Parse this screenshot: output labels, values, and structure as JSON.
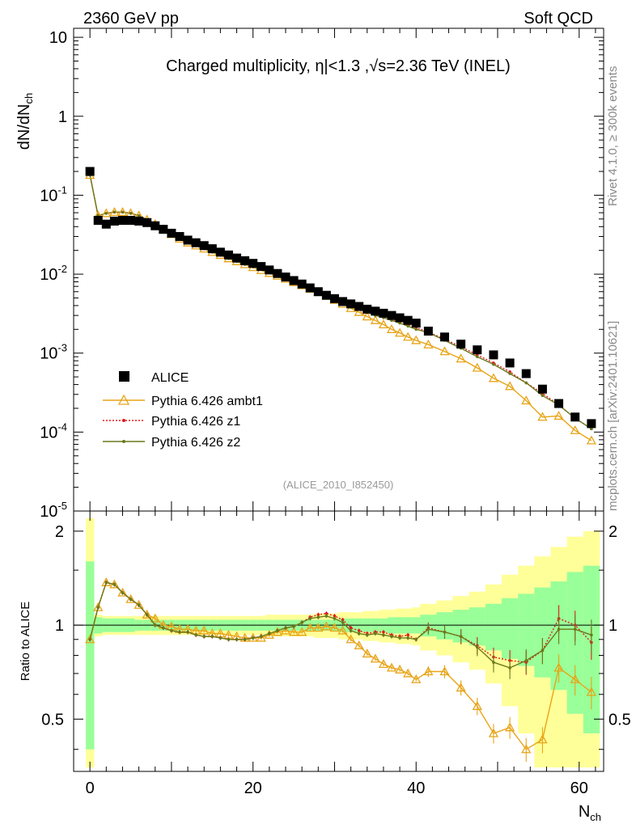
{
  "header": {
    "left": "2360 GeV pp",
    "right": "Soft QCD"
  },
  "side_text": {
    "rivet": "Rivet 4.1.0, ≥ 300k events",
    "mcplots": "mcplots.cern.ch [arXiv:2401.10621]"
  },
  "colors": {
    "data": "#000000",
    "ambt1": "#e8a417",
    "z1": "#e31a1c",
    "z2": "#6b7a1a",
    "band_inner": "#99ff99",
    "band_outer": "#ffff99"
  },
  "chart_data": [
    {
      "type": "scatter",
      "title": "Charged multiplicity, η|<1.3 ,√s=2.36 TeV (INEL)",
      "analysis_label": "(ALICE_2010_I852450)",
      "xlabel": "N_ch",
      "ylabel": "dN/dN_ch",
      "xlim": [
        -2,
        63
      ],
      "ylim": [
        1e-05,
        13
      ],
      "yscale": "log",
      "y_tick_labels": [
        "10^-5",
        "10^-4",
        "10^-3",
        "10^-2",
        "10^-1",
        "1",
        "10"
      ],
      "legend": [
        "ALICE",
        "Pythia 6.426 ambt1",
        "Pythia 6.426 z1",
        "Pythia 6.426 z2"
      ],
      "legend_position": "bottom-left",
      "x": [
        0,
        1,
        2,
        3,
        4,
        5,
        6,
        7,
        8,
        9,
        10,
        11,
        12,
        13,
        14,
        15,
        16,
        17,
        18,
        19,
        20,
        21,
        22,
        23,
        24,
        25,
        26,
        27,
        28,
        29,
        30,
        31,
        32,
        33,
        34,
        35,
        36,
        37,
        38,
        39,
        40,
        41.5,
        43.5,
        45.5,
        47.5,
        49.5,
        51.5,
        53.5,
        55.5,
        57.5,
        59.5,
        61.5
      ],
      "series": [
        {
          "name": "ALICE",
          "values": [
            0.2,
            0.048,
            0.043,
            0.047,
            0.048,
            0.048,
            0.047,
            0.045,
            0.041,
            0.037,
            0.033,
            0.03,
            0.027,
            0.025,
            0.023,
            0.021,
            0.019,
            0.0175,
            0.016,
            0.0148,
            0.0137,
            0.0125,
            0.0113,
            0.0102,
            0.0092,
            0.0083,
            0.0075,
            0.0067,
            0.006,
            0.0054,
            0.0049,
            0.0045,
            0.0042,
            0.0039,
            0.0036,
            0.0034,
            0.0032,
            0.003,
            0.0028,
            0.0026,
            0.0024,
            0.0019,
            0.0016,
            0.0013,
            0.0011,
            0.00095,
            0.00075,
            0.00055,
            0.00035,
            0.00023,
            0.000155,
            0.000128
          ]
        },
        {
          "name": "Pythia 6.426 ambt1",
          "values": [
            0.18,
            0.055,
            0.059,
            0.061,
            0.061,
            0.059,
            0.055,
            0.049,
            0.043,
            0.037,
            0.032,
            0.028,
            0.025,
            0.023,
            0.021,
            0.019,
            0.0174,
            0.0158,
            0.0145,
            0.0133,
            0.0122,
            0.0112,
            0.0103,
            0.0095,
            0.0087,
            0.0079,
            0.0072,
            0.0065,
            0.0059,
            0.0053,
            0.0047,
            0.0042,
            0.0037,
            0.0033,
            0.0029,
            0.0026,
            0.0023,
            0.002,
            0.0018,
            0.0016,
            0.00145,
            0.00128,
            0.00105,
            0.00085,
            0.00065,
            0.00048,
            0.00038,
            0.00025,
            0.000155,
            0.00016,
            0.000105,
            7.8e-05
          ]
        },
        {
          "name": "Pythia 6.426 z1",
          "values": [
            0.18,
            0.055,
            0.059,
            0.061,
            0.061,
            0.059,
            0.055,
            0.049,
            0.043,
            0.037,
            0.032,
            0.028,
            0.025,
            0.023,
            0.021,
            0.019,
            0.0174,
            0.0158,
            0.0145,
            0.0133,
            0.0124,
            0.0115,
            0.0106,
            0.0098,
            0.009,
            0.0082,
            0.0076,
            0.0071,
            0.0064,
            0.0057,
            0.0051,
            0.0045,
            0.0041,
            0.0037,
            0.0034,
            0.0031,
            0.0029,
            0.0027,
            0.0025,
            0.0023,
            0.0021,
            0.00185,
            0.0015,
            0.0012,
            0.00095,
            0.00075,
            0.00058,
            0.00042,
            0.00031,
            0.00022,
            0.00015,
            0.00011
          ]
        },
        {
          "name": "Pythia 6.426 z2",
          "values": [
            0.18,
            0.055,
            0.059,
            0.061,
            0.061,
            0.059,
            0.055,
            0.049,
            0.043,
            0.037,
            0.032,
            0.028,
            0.025,
            0.023,
            0.021,
            0.019,
            0.0174,
            0.0158,
            0.0145,
            0.0133,
            0.0124,
            0.0115,
            0.0106,
            0.0098,
            0.009,
            0.0082,
            0.0075,
            0.007,
            0.0063,
            0.0056,
            0.005,
            0.0044,
            0.004,
            0.0036,
            0.0033,
            0.003,
            0.0028,
            0.0026,
            0.0024,
            0.0022,
            0.002,
            0.00183,
            0.00145,
            0.00115,
            0.0009,
            0.00072,
            0.00055,
            0.00042,
            0.00029,
            0.00022,
            0.00015,
            0.00011
          ]
        }
      ]
    },
    {
      "type": "scatter",
      "title": "",
      "xlabel": "N_ch",
      "ylabel": "Ratio to ALICE",
      "xlim": [
        -2,
        63
      ],
      "ylim": [
        0.34,
        2.32
      ],
      "x_tick_labels": [
        "0",
        "20",
        "40",
        "60"
      ],
      "y_tick_labels": [
        "0.5",
        "1",
        "2"
      ],
      "x": [
        0,
        1,
        2,
        3,
        4,
        5,
        6,
        7,
        8,
        9,
        10,
        11,
        12,
        13,
        14,
        15,
        16,
        17,
        18,
        19,
        20,
        21,
        22,
        23,
        24,
        25,
        26,
        27,
        28,
        29,
        30,
        31,
        32,
        33,
        34,
        35,
        36,
        37,
        38,
        39,
        40,
        41.5,
        43.5,
        45.5,
        47.5,
        49.5,
        51.5,
        53.5,
        55.5,
        57.5,
        59.5,
        61.5
      ],
      "bands": {
        "edges": [
          -0.5,
          0.5,
          1.5,
          2.5,
          3.5,
          4.5,
          5.5,
          6.5,
          7.5,
          8.5,
          9.5,
          10.5,
          11.5,
          12.5,
          13.5,
          14.5,
          15.5,
          16.5,
          17.5,
          18.5,
          19.5,
          20.5,
          21.5,
          22.5,
          23.5,
          24.5,
          25.5,
          26.5,
          27.5,
          28.5,
          29.5,
          30.5,
          31.5,
          32.5,
          33.5,
          34.5,
          35.5,
          36.5,
          37.5,
          38.5,
          39.5,
          40.5,
          42.5,
          44.5,
          46.5,
          48.5,
          50.5,
          52.5,
          54.5,
          56.5,
          58.5,
          60.5,
          62.5
        ],
        "inner_half_width": [
          0.6,
          0.06,
          0.05,
          0.05,
          0.05,
          0.05,
          0.04,
          0.04,
          0.04,
          0.04,
          0.04,
          0.04,
          0.04,
          0.04,
          0.04,
          0.04,
          0.04,
          0.04,
          0.04,
          0.04,
          0.04,
          0.04,
          0.04,
          0.04,
          0.04,
          0.04,
          0.04,
          0.04,
          0.04,
          0.04,
          0.04,
          0.05,
          0.05,
          0.05,
          0.05,
          0.05,
          0.05,
          0.06,
          0.06,
          0.06,
          0.06,
          0.08,
          0.1,
          0.12,
          0.14,
          0.17,
          0.22,
          0.26,
          0.32,
          0.38,
          0.48,
          0.55
        ],
        "outer_half_width": [
          1.2,
          0.08,
          0.07,
          0.07,
          0.07,
          0.07,
          0.07,
          0.07,
          0.07,
          0.07,
          0.07,
          0.07,
          0.07,
          0.07,
          0.07,
          0.07,
          0.07,
          0.07,
          0.07,
          0.07,
          0.07,
          0.07,
          0.08,
          0.08,
          0.08,
          0.08,
          0.08,
          0.08,
          0.09,
          0.09,
          0.09,
          0.1,
          0.1,
          0.1,
          0.11,
          0.11,
          0.12,
          0.12,
          0.13,
          0.13,
          0.14,
          0.17,
          0.2,
          0.24,
          0.28,
          0.35,
          0.45,
          0.55,
          0.66,
          0.78,
          0.92,
          1.0
        ]
      },
      "series": [
        {
          "name": "Pythia 6.426 ambt1",
          "values": [
            0.9,
            1.14,
            1.37,
            1.35,
            1.27,
            1.21,
            1.16,
            1.08,
            1.05,
            1.0,
            0.99,
            0.97,
            0.97,
            0.96,
            0.96,
            0.94,
            0.94,
            0.93,
            0.92,
            0.91,
            0.91,
            0.91,
            0.93,
            0.95,
            0.96,
            0.95,
            0.95,
            0.98,
            0.98,
            0.99,
            0.98,
            0.96,
            0.9,
            0.86,
            0.81,
            0.78,
            0.75,
            0.73,
            0.72,
            0.7,
            0.67,
            0.71,
            0.71,
            0.63,
            0.55,
            0.45,
            0.47,
            0.4,
            0.43,
            0.73,
            0.67,
            0.61
          ]
        },
        {
          "name": "Pythia 6.426 z1",
          "values": [
            0.9,
            1.14,
            1.37,
            1.35,
            1.27,
            1.21,
            1.16,
            1.08,
            1.0,
            0.98,
            0.96,
            0.95,
            0.95,
            0.93,
            0.92,
            0.92,
            0.91,
            0.9,
            0.9,
            0.9,
            0.91,
            0.92,
            0.94,
            0.96,
            0.98,
            0.99,
            1.02,
            1.06,
            1.08,
            1.09,
            1.07,
            1.04,
            0.98,
            0.96,
            0.94,
            0.95,
            0.95,
            0.93,
            0.92,
            0.93,
            0.9,
            0.98,
            0.95,
            0.92,
            0.86,
            0.79,
            0.77,
            0.76,
            0.83,
            1.05,
            1.0,
            0.88
          ]
        },
        {
          "name": "Pythia 6.426 z2",
          "values": [
            0.9,
            1.14,
            1.37,
            1.35,
            1.27,
            1.21,
            1.16,
            1.08,
            1.0,
            0.98,
            0.96,
            0.95,
            0.95,
            0.93,
            0.92,
            0.92,
            0.91,
            0.9,
            0.9,
            0.9,
            0.91,
            0.92,
            0.94,
            0.96,
            0.98,
            0.99,
            1.02,
            1.05,
            1.06,
            1.07,
            1.05,
            1.02,
            0.96,
            0.94,
            0.93,
            0.94,
            0.93,
            0.92,
            0.91,
            0.91,
            0.9,
            0.97,
            0.95,
            0.92,
            0.85,
            0.76,
            0.73,
            0.77,
            0.83,
            0.97,
            0.97,
            0.93
          ]
        }
      ]
    }
  ]
}
